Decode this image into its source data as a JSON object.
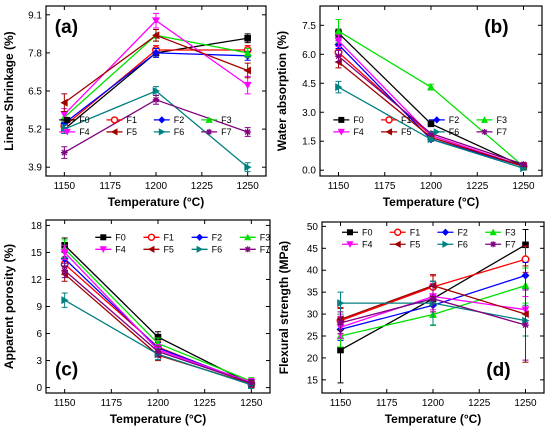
{
  "series_styles": [
    {
      "name": "F0",
      "color": "#000000",
      "marker": "square"
    },
    {
      "name": "F1",
      "color": "#ff0000",
      "marker": "circle"
    },
    {
      "name": "F2",
      "color": "#0000ff",
      "marker": "diamond"
    },
    {
      "name": "F3",
      "color": "#00e000",
      "marker": "triangle-up"
    },
    {
      "name": "F4",
      "color": "#ff00ff",
      "marker": "triangle-down"
    },
    {
      "name": "F5",
      "color": "#a00000",
      "marker": "triangle-left"
    },
    {
      "name": "F6",
      "color": "#008080",
      "marker": "triangle-right"
    },
    {
      "name": "F7",
      "color": "#800080",
      "marker": "star"
    }
  ],
  "chart_data": [
    {
      "panel": "(a)",
      "type": "line",
      "xlabel": "Temperature (°C)",
      "ylabel": "Linear Shrinkage (%)",
      "x": [
        1150,
        1200,
        1250
      ],
      "xlim": [
        1140,
        1260
      ],
      "ylim": [
        3.6,
        9.4
      ],
      "xticks": [
        1150,
        1175,
        1200,
        1225,
        1250
      ],
      "yticks": [
        3.9,
        5.2,
        6.5,
        7.8,
        9.1
      ],
      "legend": "bottom-right",
      "series": [
        {
          "name": "F0",
          "values": [
            5.2,
            7.8,
            8.3
          ],
          "errors": [
            0.15,
            0.15,
            0.15
          ]
        },
        {
          "name": "F1",
          "values": [
            5.3,
            7.9,
            7.9
          ],
          "errors": [
            0.15,
            0.15,
            0.15
          ]
        },
        {
          "name": "F2",
          "values": [
            5.4,
            7.8,
            7.7
          ],
          "errors": [
            0.15,
            0.15,
            0.15
          ]
        },
        {
          "name": "F3",
          "values": [
            5.6,
            8.4,
            7.8
          ],
          "errors": [
            0.15,
            0.2,
            0.15
          ]
        },
        {
          "name": "F4",
          "values": [
            5.7,
            8.9,
            6.7
          ],
          "errors": [
            0.2,
            0.25,
            0.3
          ]
        },
        {
          "name": "F5",
          "values": [
            6.1,
            8.4,
            7.2
          ],
          "errors": [
            0.3,
            0.2,
            0.25
          ]
        },
        {
          "name": "F6",
          "values": [
            5.2,
            6.5,
            3.9
          ],
          "errors": [
            0.15,
            0.15,
            0.15
          ]
        },
        {
          "name": "F7",
          "values": [
            4.4,
            6.2,
            5.1
          ],
          "errors": [
            0.2,
            0.15,
            0.15
          ]
        }
      ]
    },
    {
      "panel": "(b)",
      "type": "line",
      "xlabel": "Temperature (°C)",
      "ylabel": "Water absorption (%)",
      "x": [
        1150,
        1200,
        1250
      ],
      "xlim": [
        1140,
        1260
      ],
      "ylim": [
        -0.3,
        8.5
      ],
      "xticks": [
        1150,
        1175,
        1200,
        1225,
        1250
      ],
      "yticks": [
        0.0,
        1.5,
        3.0,
        4.5,
        6.0,
        7.5
      ],
      "legend": "bottom-right",
      "series": [
        {
          "name": "F0",
          "values": [
            7.1,
            2.4,
            0.2
          ],
          "errors": [
            0.2,
            0.1,
            0.1
          ]
        },
        {
          "name": "F1",
          "values": [
            6.1,
            1.8,
            0.2
          ],
          "errors": [
            0.2,
            0.1,
            0.1
          ]
        },
        {
          "name": "F2",
          "values": [
            6.5,
            1.6,
            0.2
          ],
          "errors": [
            0.2,
            0.1,
            0.1
          ]
        },
        {
          "name": "F3",
          "values": [
            7.2,
            4.3,
            0.2
          ],
          "errors": [
            0.6,
            0.15,
            0.1
          ]
        },
        {
          "name": "F4",
          "values": [
            6.7,
            1.8,
            0.2
          ],
          "errors": [
            0.3,
            0.1,
            0.1
          ]
        },
        {
          "name": "F5",
          "values": [
            5.6,
            1.7,
            0.2
          ],
          "errors": [
            0.3,
            0.1,
            0.1
          ]
        },
        {
          "name": "F6",
          "values": [
            4.3,
            1.6,
            0.1
          ],
          "errors": [
            0.3,
            0.1,
            0.1
          ]
        },
        {
          "name": "F7",
          "values": [
            5.9,
            1.9,
            0.3
          ],
          "errors": [
            0.3,
            0.1,
            0.1
          ]
        }
      ]
    },
    {
      "panel": "(c)",
      "type": "line",
      "xlabel": "Temperature (°C)",
      "ylabel": "Apparent porosity (%)",
      "x": [
        1150,
        1200,
        1250
      ],
      "xlim": [
        1140,
        1260
      ],
      "ylim": [
        -0.6,
        18.6
      ],
      "xticks": [
        1150,
        1175,
        1200,
        1225,
        1250
      ],
      "yticks": [
        0,
        3,
        6,
        9,
        12,
        15,
        18
      ],
      "legend": "top-right",
      "series": [
        {
          "name": "F0",
          "values": [
            15.8,
            5.6,
            0.4
          ],
          "errors": [
            0.8,
            0.6,
            0.4
          ]
        },
        {
          "name": "F1",
          "values": [
            13.7,
            4.5,
            0.4
          ],
          "errors": [
            0.8,
            0.6,
            0.4
          ]
        },
        {
          "name": "F2",
          "values": [
            14.3,
            4.4,
            0.5
          ],
          "errors": [
            0.8,
            0.6,
            0.4
          ]
        },
        {
          "name": "F3",
          "values": [
            15.4,
            4.9,
            0.7
          ],
          "errors": [
            1.0,
            0.6,
            0.4
          ]
        },
        {
          "name": "F4",
          "values": [
            15.0,
            4.2,
            0.6
          ],
          "errors": [
            0.8,
            0.6,
            0.4
          ]
        },
        {
          "name": "F5",
          "values": [
            12.6,
            3.6,
            0.4
          ],
          "errors": [
            0.8,
            0.6,
            0.4
          ]
        },
        {
          "name": "F6",
          "values": [
            9.7,
            3.7,
            0.3
          ],
          "errors": [
            0.8,
            0.6,
            0.4
          ]
        },
        {
          "name": "F7",
          "values": [
            13.0,
            4.0,
            0.5
          ],
          "errors": [
            0.8,
            0.6,
            0.4
          ]
        }
      ]
    },
    {
      "panel": "(d)",
      "type": "line",
      "xlabel": "Temperature (°C)",
      "ylabel": "Flexural strength (MPa)",
      "x": [
        1150,
        1200,
        1250
      ],
      "xlim": [
        1140,
        1260
      ],
      "ylim": [
        12,
        51
      ],
      "xticks": [
        1150,
        1175,
        1200,
        1225,
        1250
      ],
      "yticks": [
        15,
        20,
        25,
        30,
        35,
        40,
        45,
        50
      ],
      "legend": "top-left",
      "series": [
        {
          "name": "F0",
          "values": [
            21.8,
            33.5,
            45.8
          ],
          "errors": [
            7.5,
            4,
            3.5
          ]
        },
        {
          "name": "F1",
          "values": [
            28.5,
            36.2,
            42.5
          ],
          "errors": [
            3,
            2.5,
            3
          ]
        },
        {
          "name": "F2",
          "values": [
            26.5,
            32.0,
            38.8
          ],
          "errors": [
            2.5,
            2.5,
            3
          ]
        },
        {
          "name": "F3",
          "values": [
            25.0,
            29.9,
            36.5
          ],
          "errors": [
            2.5,
            2.5,
            4
          ]
        },
        {
          "name": "F4",
          "values": [
            27.0,
            34.0,
            31.0
          ],
          "errors": [
            2.5,
            3,
            3
          ]
        },
        {
          "name": "F5",
          "values": [
            28.8,
            36.5,
            30.0
          ],
          "errors": [
            2.5,
            2.5,
            11
          ]
        },
        {
          "name": "F6",
          "values": [
            32.5,
            32.5,
            28.5
          ],
          "errors": [
            2.5,
            5,
            3.5
          ]
        },
        {
          "name": "F7",
          "values": [
            28.0,
            33.5,
            27.5
          ],
          "errors": [
            2.5,
            3,
            8
          ]
        }
      ]
    }
  ]
}
